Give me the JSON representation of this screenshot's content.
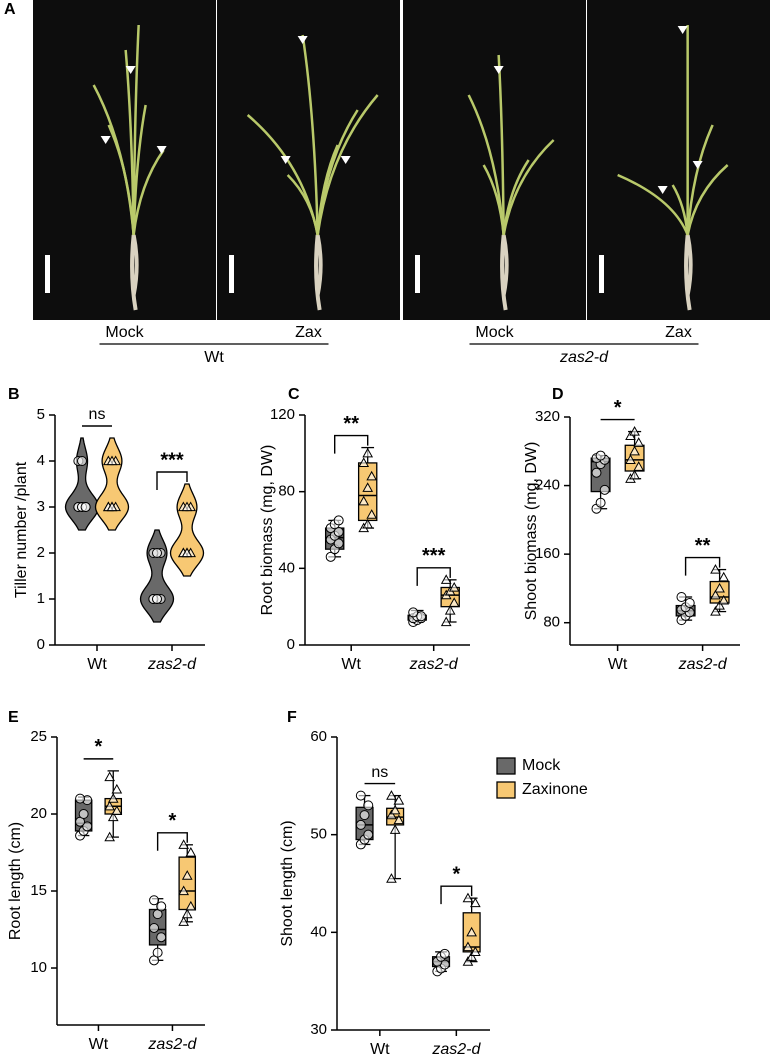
{
  "panel_a": {
    "label": "A",
    "images": [
      {
        "label": "Mock"
      },
      {
        "label": "Zax"
      },
      {
        "label": "Mock"
      },
      {
        "label": "Zax"
      }
    ],
    "groups": [
      {
        "label": "Wt"
      },
      {
        "label": "zas2-d"
      }
    ]
  },
  "legend": {
    "items": [
      {
        "name": "Mock",
        "color": "#696969"
      },
      {
        "name": "Zaxinone",
        "color": "#f7c873"
      }
    ]
  },
  "chart_data": [
    {
      "type": "violin",
      "panel": "B",
      "ylabel": "Tiller number /plant",
      "categories": [
        "Wt",
        "zas2-d"
      ],
      "ylim": [
        0,
        5
      ],
      "yticks": [
        0,
        1,
        2,
        3,
        4,
        5
      ],
      "series": [
        {
          "points": [
            [
              3,
              3,
              3,
              3,
              3,
              3,
              4,
              4
            ],
            [
              1,
              1,
              1,
              1,
              1,
              2,
              2,
              2
            ]
          ]
        },
        {
          "points": [
            [
              3,
              3,
              3,
              3,
              3,
              4,
              4,
              4
            ],
            [
              2,
              2,
              2,
              2,
              2,
              3,
              3,
              3
            ]
          ]
        }
      ],
      "annotations": [
        {
          "text": "ns",
          "category": 0,
          "bracket": false
        },
        {
          "text": "***",
          "category": 1,
          "bracket": true
        }
      ]
    },
    {
      "type": "box",
      "panel": "C",
      "ylabel": "Root biomass (mg, DW)",
      "categories": [
        "Wt",
        "zas2-d"
      ],
      "ylim": [
        0,
        120
      ],
      "yticks": [
        0,
        40,
        80,
        120
      ],
      "series": [
        {
          "values": [
            {
              "min": 46,
              "q1": 50,
              "median": 56,
              "q3": 61,
              "max": 65
            },
            {
              "min": 12,
              "q1": 13,
              "median": 14,
              "q3": 15.5,
              "max": 18
            }
          ],
          "points": [
            [
              46,
              50,
              53,
              55,
              57,
              59,
              61,
              63,
              65
            ],
            [
              12,
              13,
              14,
              14,
              15,
              15,
              17
            ]
          ]
        },
        {
          "values": [
            {
              "min": 61,
              "q1": 65,
              "median": 78,
              "q3": 95,
              "max": 103
            },
            {
              "min": 12,
              "q1": 20,
              "median": 26,
              "q3": 30,
              "max": 34
            }
          ],
          "points": [
            [
              61,
              63,
              68,
              75,
              82,
              88,
              95,
              100
            ],
            [
              12,
              18,
              22,
              26,
              28,
              30,
              34
            ]
          ]
        }
      ],
      "annotations": [
        {
          "text": "**",
          "category": 0,
          "bracket": true
        },
        {
          "text": "***",
          "category": 1,
          "bracket": true
        }
      ]
    },
    {
      "type": "box",
      "panel": "D",
      "ylabel": "Shoot biomass (mg, DW)",
      "categories": [
        "Wt",
        "zas2-d"
      ],
      "ylim": [
        54,
        320
      ],
      "yticks": [
        80,
        160,
        240,
        320
      ],
      "series": [
        {
          "values": [
            {
              "min": 213,
              "q1": 233,
              "median": 268,
              "q3": 272,
              "max": 275
            },
            {
              "min": 83,
              "q1": 88,
              "median": 94,
              "q3": 100,
              "max": 110
            }
          ],
          "points": [
            [
              213,
              220,
              235,
              255,
              265,
              270,
              272,
              275
            ],
            [
              83,
              88,
              92,
              95,
              98,
              103,
              110
            ]
          ]
        },
        {
          "values": [
            {
              "min": 248,
              "q1": 257,
              "median": 270,
              "q3": 287,
              "max": 303
            },
            {
              "min": 93,
              "q1": 103,
              "median": 110,
              "q3": 128,
              "max": 142
            }
          ],
          "points": [
            [
              248,
              252,
              262,
              270,
              280,
              290,
              298,
              303
            ],
            [
              93,
              100,
              106,
              112,
              120,
              133,
              142
            ]
          ]
        }
      ],
      "annotations": [
        {
          "text": "*",
          "category": 0,
          "bracket": false
        },
        {
          "text": "**",
          "category": 1,
          "bracket": true
        }
      ]
    },
    {
      "type": "box",
      "panel": "E",
      "ylabel": "Root length (cm)",
      "categories": [
        "Wt",
        "zas2-d"
      ],
      "ylim": [
        6.3,
        25
      ],
      "yticks": [
        10,
        15,
        20,
        25
      ],
      "series": [
        {
          "values": [
            {
              "min": 18.6,
              "q1": 18.9,
              "median": 19.4,
              "q3": 20.9,
              "max": 21.1
            },
            {
              "min": 10.5,
              "q1": 11.5,
              "median": 12.5,
              "q3": 13.8,
              "max": 14.5
            }
          ],
          "points": [
            [
              18.6,
              18.9,
              19.2,
              19.5,
              20,
              20.9,
              21
            ],
            [
              10.5,
              11,
              12,
              12.6,
              13.5,
              14,
              14.4
            ]
          ]
        },
        {
          "values": [
            {
              "min": 18.5,
              "q1": 20,
              "median": 20.5,
              "q3": 21,
              "max": 22.8
            },
            {
              "min": 13,
              "q1": 13.8,
              "median": 15,
              "q3": 17.2,
              "max": 18
            }
          ],
          "points": [
            [
              18.5,
              19.8,
              20.2,
              20.5,
              21,
              21.6,
              22.4
            ],
            [
              13,
              13.5,
              14,
              15,
              16,
              17.5,
              18
            ]
          ]
        }
      ],
      "annotations": [
        {
          "text": "*",
          "category": 0,
          "bracket": false
        },
        {
          "text": "*",
          "category": 1,
          "bracket": true
        }
      ]
    },
    {
      "type": "box",
      "panel": "F",
      "ylabel": "Shoot length (cm)",
      "categories": [
        "Wt",
        "zas2-d"
      ],
      "ylim": [
        30,
        60
      ],
      "yticks": [
        30,
        40,
        50,
        60
      ],
      "series": [
        {
          "values": [
            {
              "min": 49,
              "q1": 49.5,
              "median": 51,
              "q3": 52.8,
              "max": 54
            },
            {
              "min": 36,
              "q1": 36.5,
              "median": 37,
              "q3": 37.5,
              "max": 38
            }
          ],
          "points": [
            [
              49,
              49.5,
              50,
              51,
              52,
              53,
              54
            ],
            [
              36,
              36.3,
              36.7,
              37,
              37.5,
              37.8
            ]
          ]
        },
        {
          "values": [
            {
              "min": 45.5,
              "q1": 51,
              "median": 51.8,
              "q3": 52.7,
              "max": 54
            },
            {
              "min": 37,
              "q1": 38,
              "median": 38.5,
              "q3": 42,
              "max": 43.5
            }
          ],
          "points": [
            [
              45.5,
              50.5,
              51.5,
              52,
              52.5,
              53.5,
              54
            ],
            [
              37,
              37.5,
              38,
              38.5,
              40,
              43,
              43.5
            ]
          ]
        }
      ],
      "annotations": [
        {
          "text": "ns",
          "category": 0,
          "bracket": false
        },
        {
          "text": "*",
          "category": 1,
          "bracket": true
        }
      ]
    }
  ]
}
